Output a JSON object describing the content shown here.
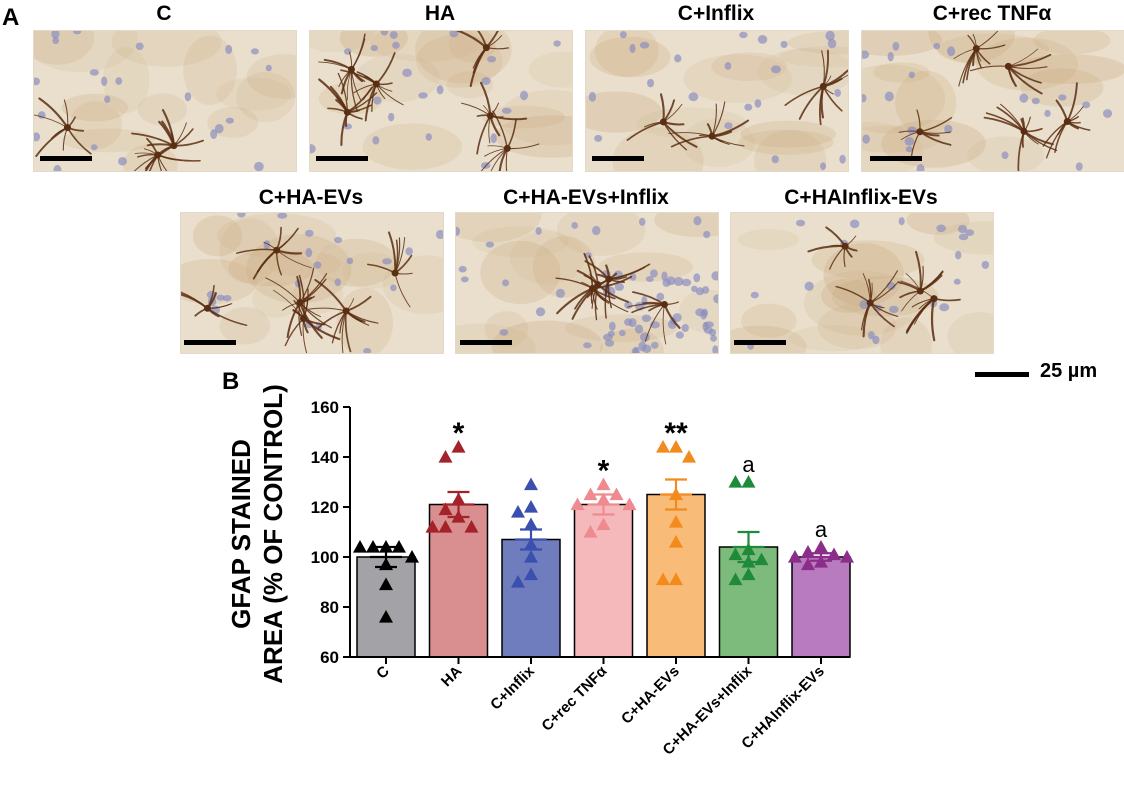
{
  "panel_a_label": "A",
  "panel_b_label": "B",
  "images": [
    {
      "title": "C"
    },
    {
      "title": "HA"
    },
    {
      "title": "C+Inflix"
    },
    {
      "title": "C+rec TNFα"
    },
    {
      "title": "C+HA-EVs"
    },
    {
      "title": "C+HA-EVs+Inflix"
    },
    {
      "title": "C+HAInflix-EVs"
    }
  ],
  "scale_bar_label": "25 µm",
  "colors": {
    "tissue_bg": "#e9dfcc",
    "astrocyte": "#5a2e12",
    "nucleus": "#8c8fbf"
  },
  "chart_data": {
    "type": "bar",
    "title": "",
    "ylabel_lines": [
      "GFAP STAINED",
      "AREA (% OF CONTROL)"
    ],
    "xlabel": "",
    "ylim": [
      60,
      160
    ],
    "yticks": [
      60,
      80,
      100,
      120,
      140,
      160
    ],
    "categories": [
      "C",
      "HA",
      "C+Inflix",
      "C+rec TNFα",
      "C+HA-EVs",
      "C+HA-EVs+Inflix",
      "C+HAInflix-EVs"
    ],
    "values": [
      100,
      121,
      107,
      121,
      125,
      104,
      100
    ],
    "sem": [
      4,
      5,
      4,
      4,
      6,
      6,
      1.5
    ],
    "bar_colors": [
      "#a3a3a7",
      "#d98f8f",
      "#6f7dbf",
      "#f6b9bb",
      "#f9bb78",
      "#7dbb7d",
      "#b97bbf"
    ],
    "marker_colors": [
      "#000000",
      "#a4222a",
      "#3a4fae",
      "#ef8a90",
      "#f28a1e",
      "#1f8a3a",
      "#8a2e8a"
    ],
    "points": [
      [
        104,
        104,
        104,
        104,
        100,
        97,
        89,
        76
      ],
      [
        144,
        140,
        123,
        119,
        116,
        112,
        112,
        112
      ],
      [
        129,
        120,
        118,
        113,
        105,
        100,
        93,
        90
      ],
      [
        129,
        125,
        125,
        123,
        121,
        121,
        113,
        110
      ],
      [
        144,
        144,
        140,
        125,
        114,
        106,
        91,
        91
      ],
      [
        130,
        130,
        103,
        101,
        99,
        98,
        93,
        91
      ],
      [
        104,
        102,
        101,
        100,
        100,
        98,
        97
      ]
    ],
    "annotations": [
      "",
      "*",
      "",
      "*",
      "**",
      "a",
      "a"
    ]
  }
}
